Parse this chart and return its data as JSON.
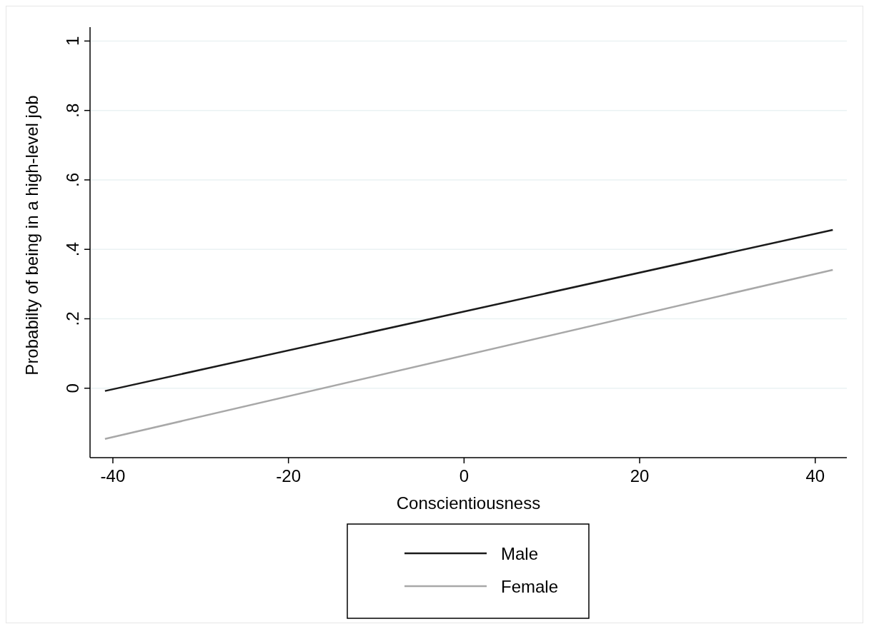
{
  "chart_data": {
    "type": "line",
    "xlabel": "Conscientiousness",
    "ylabel": "Probabilty of being in a high-level job",
    "xlim": [
      -42.6,
      43.6
    ],
    "xticks": [
      -40,
      -20,
      0,
      20,
      40
    ],
    "ylim": [
      -0.2,
      1.04
    ],
    "yticks": [
      0,
      {
        "value": 0.2,
        "label": ".2"
      },
      {
        "value": 0.4,
        "label": ".4"
      },
      {
        "value": 0.6,
        "label": ".6"
      },
      {
        "value": 0.8,
        "label": ".8"
      },
      1
    ],
    "x": [
      -40.9,
      42
    ],
    "grid": "y",
    "legend": "bottom",
    "marker": "none",
    "line_style": "solid",
    "series": [
      {
        "name": "Male",
        "color": "#1a1a1a",
        "values": [
          -0.008,
          0.456
        ]
      },
      {
        "name": "Female",
        "color": "#a8a8a8",
        "values": [
          -0.146,
          0.341
        ]
      }
    ]
  }
}
